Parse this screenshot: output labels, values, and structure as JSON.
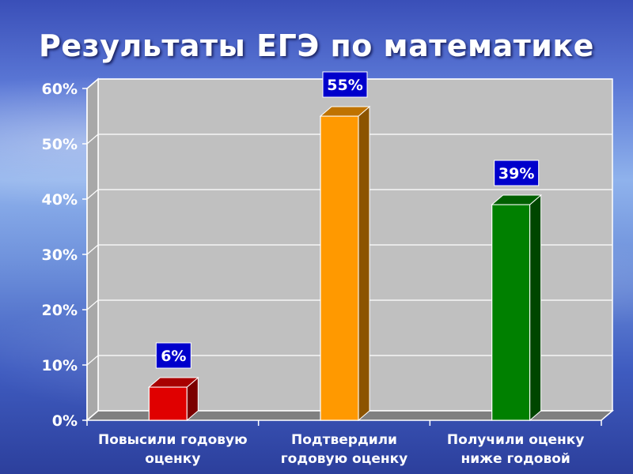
{
  "slide": {
    "title": "Результаты ЕГЭ по математике"
  },
  "chart_data": {
    "type": "bar",
    "title": "Результаты ЕГЭ по математике",
    "categories": [
      [
        "Повысили годовую",
        "оценку"
      ],
      [
        "Подтвердили",
        "годовую оценку"
      ],
      [
        "Получили оценку",
        "ниже годовой"
      ]
    ],
    "values": [
      6,
      55,
      39
    ],
    "value_labels": [
      "6%",
      "55%",
      "39%"
    ],
    "colors": [
      "#e00000",
      "#ff9900",
      "#008000"
    ],
    "ylim": [
      0,
      60
    ],
    "yticks": [
      0,
      10,
      20,
      30,
      40,
      50,
      60
    ],
    "ytick_labels": [
      "0%",
      "10%",
      "20%",
      "30%",
      "40%",
      "50%",
      "60%"
    ],
    "grid": true,
    "legend": "none",
    "label_box_color": "#0000cc",
    "plot_wall_color": "#c0c0c0",
    "plot_floor_color": "#808080"
  }
}
